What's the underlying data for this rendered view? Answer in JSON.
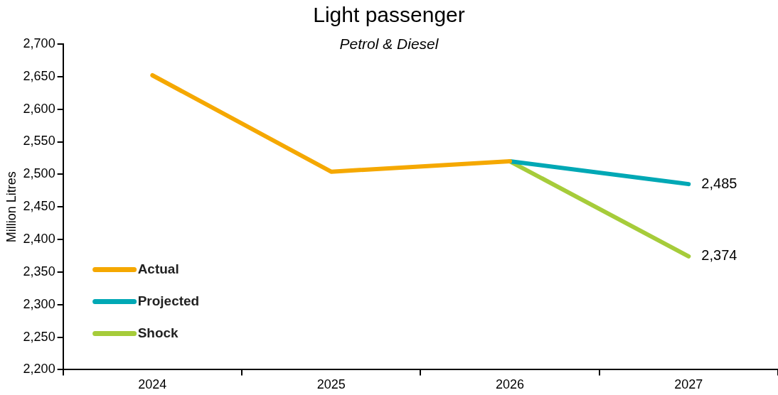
{
  "chart_data": {
    "type": "line",
    "title": "Light passenger",
    "subtitle": "Petrol & Diesel",
    "ylabel": "Million Litres",
    "categories": [
      "2024",
      "2025",
      "2026",
      "2027"
    ],
    "series": [
      {
        "name": "Actual",
        "color": "#f5a800",
        "values": [
          2652,
          2504,
          2520,
          null
        ]
      },
      {
        "name": "Projected",
        "color": "#00a8b5",
        "values": [
          null,
          null,
          2520,
          2485
        ],
        "value_labels": [
          null,
          null,
          null,
          "2,485"
        ]
      },
      {
        "name": "Shock",
        "color": "#a6cc3a",
        "values": [
          null,
          null,
          2520,
          2374
        ],
        "value_labels": [
          null,
          null,
          null,
          "2,374"
        ]
      }
    ],
    "ylim": [
      2200,
      2700
    ],
    "yticks": [
      {
        "value": 2200,
        "label": "2,200"
      },
      {
        "value": 2250,
        "label": "2,250"
      },
      {
        "value": 2300,
        "label": "2,300"
      },
      {
        "value": 2350,
        "label": "2,350"
      },
      {
        "value": 2400,
        "label": "2,400"
      },
      {
        "value": 2450,
        "label": "2,450"
      },
      {
        "value": 2500,
        "label": "2,500"
      },
      {
        "value": 2550,
        "label": "2,550"
      },
      {
        "value": 2600,
        "label": "2,600"
      },
      {
        "value": 2650,
        "label": "2,650"
      },
      {
        "value": 2700,
        "label": "2,700"
      }
    ],
    "grid": false,
    "legend": "bottom left",
    "marker": "none",
    "line_style": "solid"
  }
}
